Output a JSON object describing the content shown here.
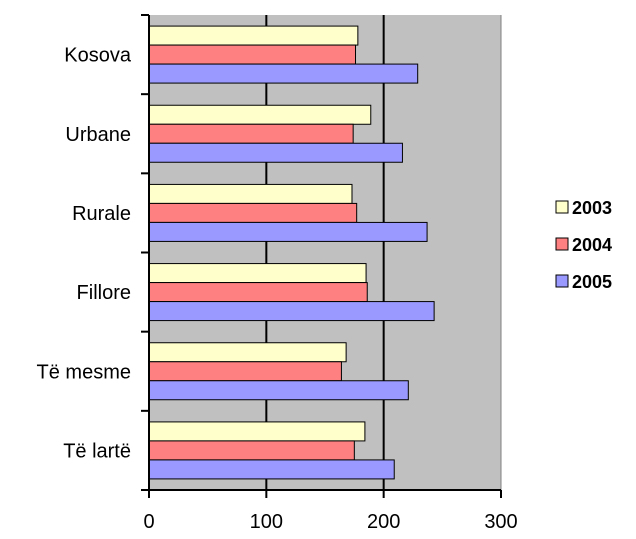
{
  "chart_data": {
    "type": "bar",
    "orientation": "horizontal",
    "categories": [
      "Kosova",
      "Urbane",
      "Rurale",
      "Fillore",
      "Të mesme",
      "Të lartë"
    ],
    "series": [
      {
        "name": "2003",
        "color": "#ffffcc",
        "values": [
          178,
          189,
          173,
          185,
          168,
          184
        ]
      },
      {
        "name": "2004",
        "color": "#ff8080",
        "values": [
          176,
          174,
          177,
          186,
          164,
          175
        ]
      },
      {
        "name": "2005",
        "color": "#9999ff",
        "values": [
          229,
          216,
          237,
          243,
          221,
          209
        ]
      }
    ],
    "xlim": [
      0,
      300
    ],
    "xticks": [
      "0",
      "100",
      "200",
      "300"
    ],
    "plot_background": "#c0c0c0",
    "grid": true,
    "legend_position": "right"
  }
}
